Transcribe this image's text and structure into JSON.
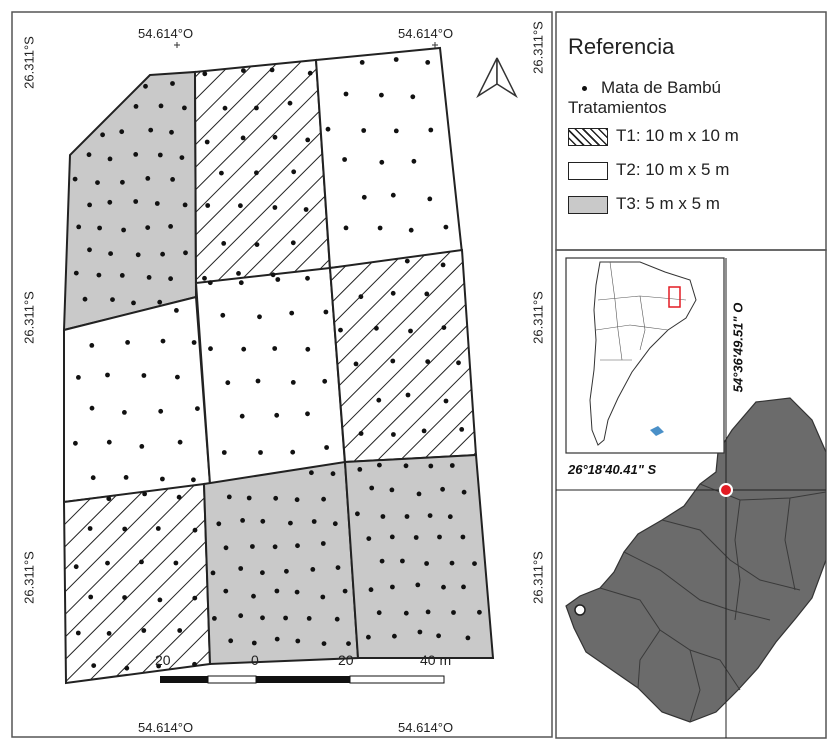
{
  "map": {
    "coords": {
      "top_left": "54.614°O",
      "top_right": "54.614°O",
      "bottom_left": "54.614°O",
      "bottom_right": "54.614°O",
      "left_top": "26.311°S",
      "left_mid": "26.311°S",
      "left_bottom": "26.311°S",
      "right_top": "26.311°S",
      "right_mid": "26.311°S",
      "right_bottom": "26.311°S"
    },
    "scale_bar": {
      "labels": [
        "20",
        "0",
        "20",
        "40 m"
      ]
    },
    "plots": [
      {
        "id": "p1",
        "treatment": "T3"
      },
      {
        "id": "p2",
        "treatment": "T1"
      },
      {
        "id": "p3",
        "treatment": "T2"
      },
      {
        "id": "p4",
        "treatment": "T2"
      },
      {
        "id": "p5",
        "treatment": "T2"
      },
      {
        "id": "p6",
        "treatment": "T1"
      },
      {
        "id": "p7",
        "treatment": "T1"
      },
      {
        "id": "p8",
        "treatment": "T3"
      },
      {
        "id": "p9",
        "treatment": "T3"
      }
    ],
    "colors": {
      "gray_fill": "#c9c9c9",
      "line": "#222222",
      "province": "#6b6b6b",
      "marker": "#e31b23"
    }
  },
  "legend": {
    "title": "Referencia",
    "point_label": "Mata de Bambú",
    "group_label": "Tratamientos",
    "t1": "T1: 10 m x 10 m",
    "t2": "T2: 10 m x 5 m",
    "t3": "T3: 5 m x 5 m"
  },
  "inset": {
    "lat_label": "26°18'40.41\" S",
    "lon_label": "54°36'49.51\" O"
  }
}
